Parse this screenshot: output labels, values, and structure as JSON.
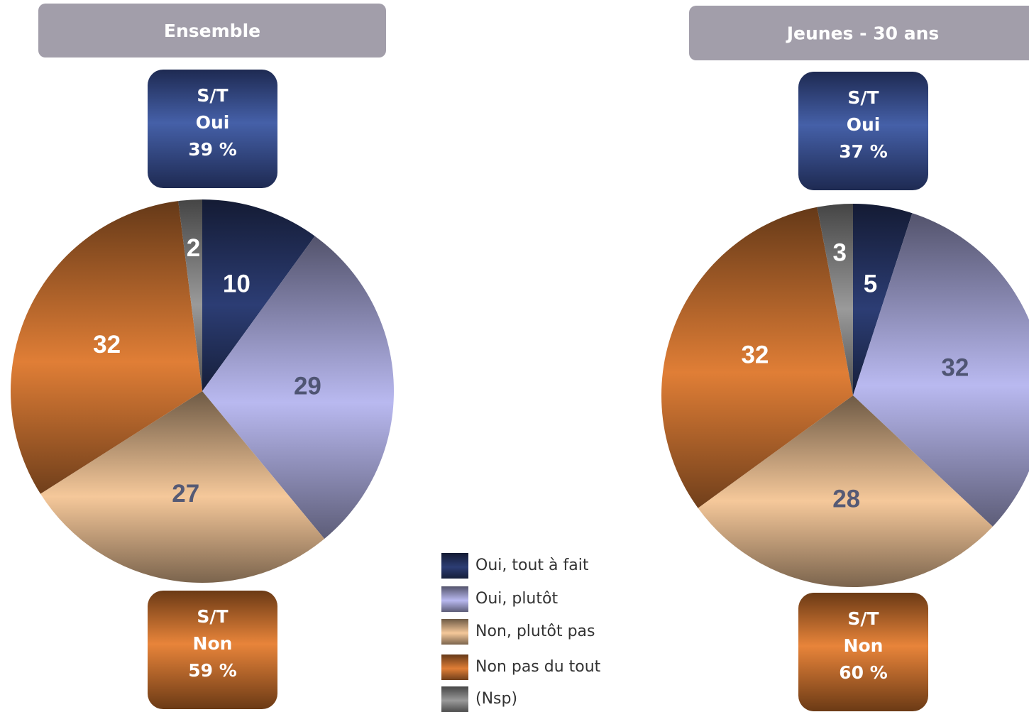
{
  "chart_data": [
    {
      "type": "pie",
      "title": "Ensemble",
      "categories": [
        "Oui, tout à fait",
        "Oui, plutôt",
        "Non, plutôt pas",
        "Non pas du tout",
        "(Nsp)"
      ],
      "values": [
        10,
        29,
        27,
        32,
        2
      ],
      "colors": [
        "#2c3d74",
        "#b9b9f0",
        "#f5c89a",
        "#e07e36",
        "#9a9a9a"
      ],
      "summaries": [
        [
          "S/T",
          "Oui",
          "39 %"
        ],
        [
          "S/T",
          "Non",
          "59 %"
        ]
      ]
    },
    {
      "type": "pie",
      "title": "Jeunes - 30 ans",
      "categories": [
        "Oui, tout à fait",
        "Oui, plutôt",
        "Non, plutôt pas",
        "Non pas du tout",
        "(Nsp)"
      ],
      "values": [
        5,
        32,
        28,
        32,
        3
      ],
      "colors": [
        "#2c3d74",
        "#b9b9f0",
        "#f5c89a",
        "#e07e36",
        "#9a9a9a"
      ],
      "summaries": [
        [
          "S/T",
          "Oui",
          "37 %"
        ],
        [
          "S/T",
          "Non",
          "60 %"
        ]
      ]
    }
  ]
}
